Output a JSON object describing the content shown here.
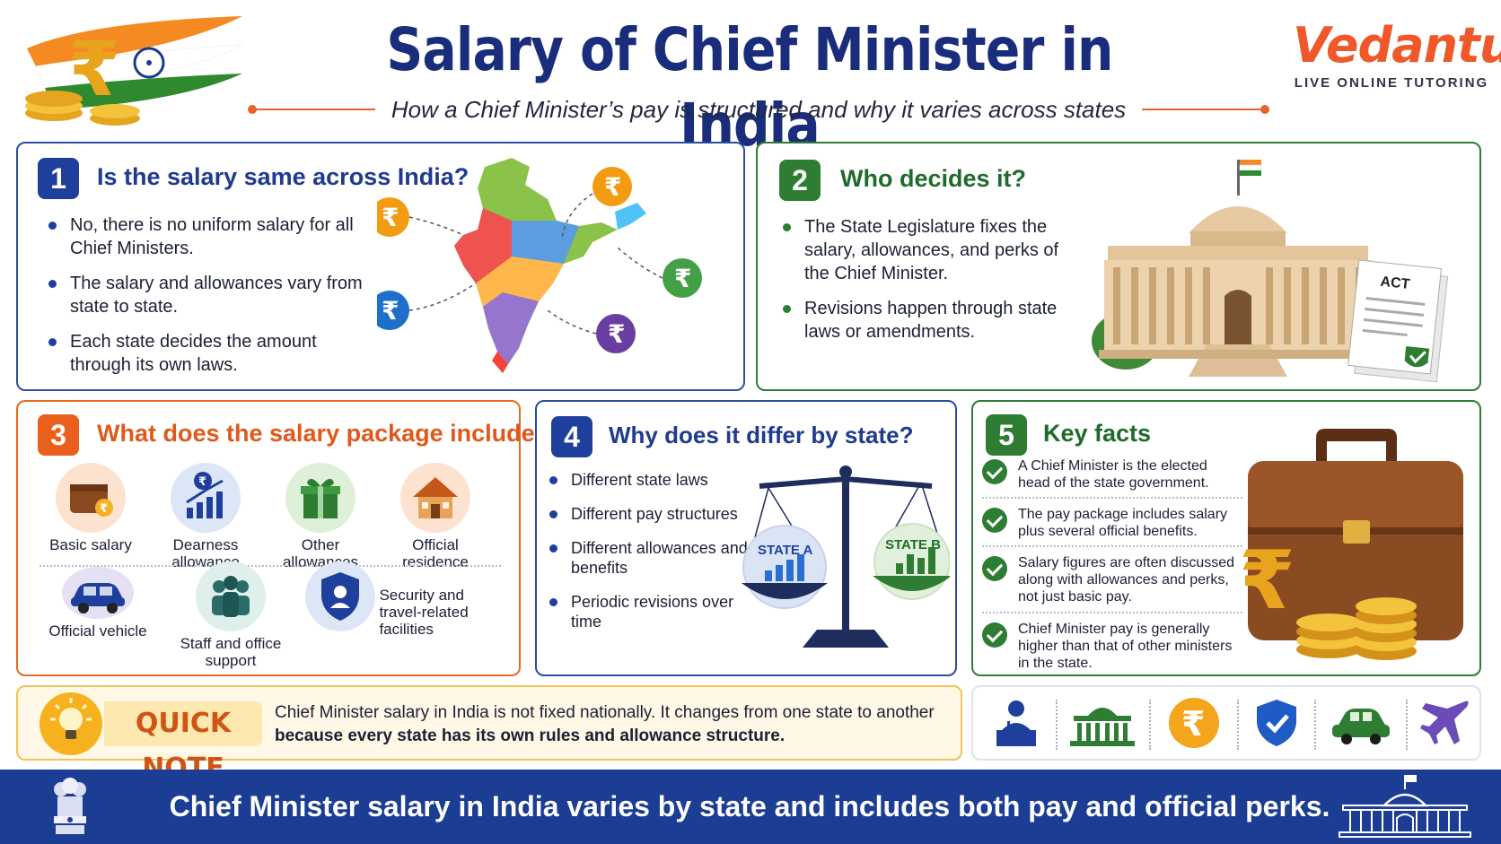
{
  "header": {
    "title": "Salary of Chief Minister in India",
    "subtitle": "How a Chief Minister’s pay is structured and why it varies across states",
    "brand_name": "Vedantu",
    "brand_tagline": "LIVE ONLINE TUTORING"
  },
  "colors": {
    "navy": "#1f3f9c",
    "green": "#2e7d32",
    "orange": "#e8601c",
    "footer": "#1c3d94"
  },
  "card1": {
    "number": "1",
    "title": "Is the salary same across India?",
    "bullets": [
      "No, there is no uniform salary for all Chief Ministers.",
      "The salary and allowances vary from state to state.",
      "Each state decides the amount through its own laws."
    ],
    "icons": [
      "india-map-icon",
      "rupee-coin-icon"
    ]
  },
  "card2": {
    "number": "2",
    "title": "Who decides it?",
    "bullets": [
      "The State Legislature fixes the salary, allowances, and perks of the Chief Minister.",
      "Revisions happen through state laws or amendments."
    ],
    "document_label": "ACT",
    "icons": [
      "legislature-building-icon",
      "act-document-icon"
    ]
  },
  "card3": {
    "number": "3",
    "title": "What does the salary package include?",
    "items": [
      {
        "label": "Basic salary",
        "icon": "wallet-icon"
      },
      {
        "label": "Dearness allowance",
        "icon": "growth-chart-icon"
      },
      {
        "label": "Other allowances",
        "icon": "gift-icon"
      },
      {
        "label": "Official residence",
        "icon": "house-icon"
      },
      {
        "label": "Official vehicle",
        "icon": "car-icon"
      },
      {
        "label": "Staff and office support",
        "icon": "staff-icon"
      },
      {
        "label": "Security and travel-related facilities",
        "icon": "security-shield-icon"
      }
    ]
  },
  "card4": {
    "number": "4",
    "title": "Why does it differ by state?",
    "bullets": [
      "Different state laws",
      "Different pay structures",
      "Different allowances and benefits",
      "Periodic revisions over time"
    ],
    "scale_left": "STATE A",
    "scale_right": "STATE B",
    "icons": [
      "balance-scale-icon"
    ]
  },
  "card5": {
    "number": "5",
    "title": "Key facts",
    "facts": [
      "A Chief Minister is the elected head of the state government.",
      "The pay package includes salary plus several official benefits.",
      "Salary figures are often discussed along with allowances and perks, not just basic pay.",
      "Chief Minister pay is generally higher than that of other ministers in the state."
    ],
    "icons": [
      "briefcase-icon",
      "rupee-icon",
      "coins-icon"
    ]
  },
  "quick_note": {
    "label": "QUICK NOTE",
    "text_line1": "Chief Minister salary in India is not fixed nationally. It changes from one state to another",
    "text_line2": "because every state has its own rules and allowance structure.",
    "icon": "lightbulb-icon"
  },
  "icon_strip": [
    "speaker-icon",
    "legislature-icon",
    "rupee-icon",
    "shield-icon",
    "car-icon",
    "airplane-icon"
  ],
  "footer": {
    "text": "Chief Minister salary in India varies by state and includes both pay and official perks.",
    "icons": [
      "national-emblem-icon",
      "parliament-icon"
    ]
  }
}
